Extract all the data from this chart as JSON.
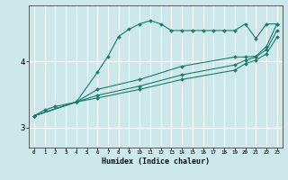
{
  "xlabel": "Humidex (Indice chaleur)",
  "ylabel": "",
  "bg_color": "#cce8ea",
  "line_color": "#1a7a6e",
  "grid_color": "#ffffff",
  "xlim": [
    -0.5,
    23.5
  ],
  "ylim": [
    2.7,
    4.85
  ],
  "yticks": [
    3,
    4
  ],
  "xticks": [
    0,
    1,
    2,
    3,
    4,
    5,
    6,
    7,
    8,
    9,
    10,
    11,
    12,
    13,
    14,
    15,
    16,
    17,
    18,
    19,
    20,
    21,
    22,
    23
  ],
  "series": [
    {
      "x": [
        0,
        1,
        2,
        4,
        6,
        7,
        8,
        9,
        10,
        11,
        12,
        13,
        14,
        15,
        16,
        17,
        18,
        19,
        20,
        21,
        22,
        23
      ],
      "y": [
        3.18,
        3.27,
        3.32,
        3.39,
        3.84,
        4.08,
        4.38,
        4.49,
        4.57,
        4.62,
        4.57,
        4.47,
        4.47,
        4.47,
        4.47,
        4.47,
        4.47,
        4.47,
        4.57,
        4.35,
        4.57,
        4.57
      ]
    },
    {
      "x": [
        0,
        4,
        6,
        10,
        14,
        19,
        20,
        21,
        22,
        23
      ],
      "y": [
        3.18,
        3.39,
        3.58,
        3.73,
        3.93,
        4.07,
        4.07,
        4.08,
        4.23,
        4.57
      ]
    },
    {
      "x": [
        0,
        4,
        6,
        10,
        14,
        19,
        20,
        21,
        22,
        23
      ],
      "y": [
        3.18,
        3.39,
        3.49,
        3.63,
        3.8,
        3.95,
        4.02,
        4.07,
        4.18,
        4.47
      ]
    },
    {
      "x": [
        0,
        4,
        6,
        10,
        14,
        19,
        20,
        21,
        22,
        23
      ],
      "y": [
        3.18,
        3.39,
        3.45,
        3.58,
        3.73,
        3.87,
        3.97,
        4.02,
        4.12,
        4.37
      ]
    }
  ]
}
